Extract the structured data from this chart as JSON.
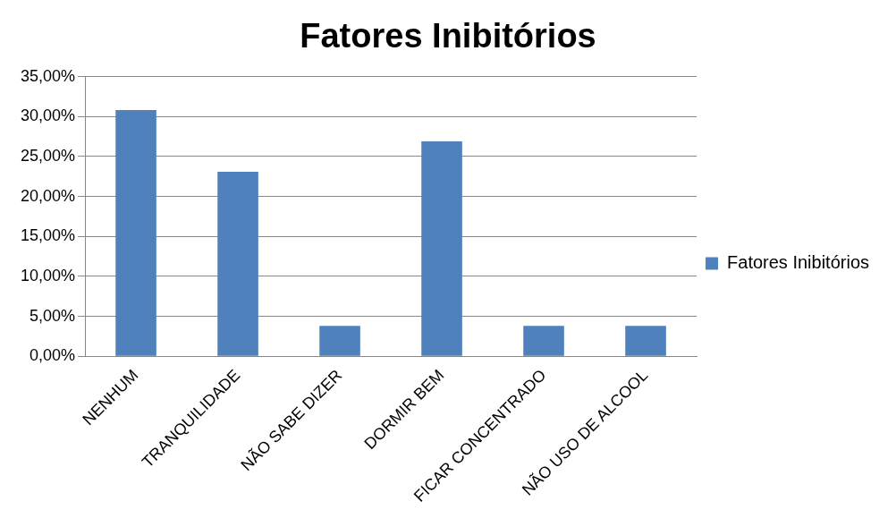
{
  "chart_data": {
    "type": "bar",
    "title": "Fatores Inibitórios",
    "categories": [
      "NENHUM",
      "TRANQUILIDADE",
      "NÃO SABE DIZER",
      "DORMIR BEM",
      "FICAR CONCENTRADO",
      "NÃO USO DE ALCOOL"
    ],
    "series": [
      {
        "name": "Fatores Inibitórios",
        "color": "#4f81bd",
        "values": [
          30.8,
          23.1,
          3.8,
          26.9,
          3.8,
          3.8
        ]
      }
    ],
    "ylim": [
      0,
      35
    ],
    "yticks": [
      {
        "value": 0,
        "label": "0,00%"
      },
      {
        "value": 5,
        "label": "5,00%"
      },
      {
        "value": 10,
        "label": "10,00%"
      },
      {
        "value": 15,
        "label": "15,00%"
      },
      {
        "value": 20,
        "label": "20,00%"
      },
      {
        "value": 25,
        "label": "25,00%"
      },
      {
        "value": 30,
        "label": "30,00%"
      },
      {
        "value": 35,
        "label": "35,00%"
      }
    ],
    "grid": "y",
    "legend": "right"
  }
}
